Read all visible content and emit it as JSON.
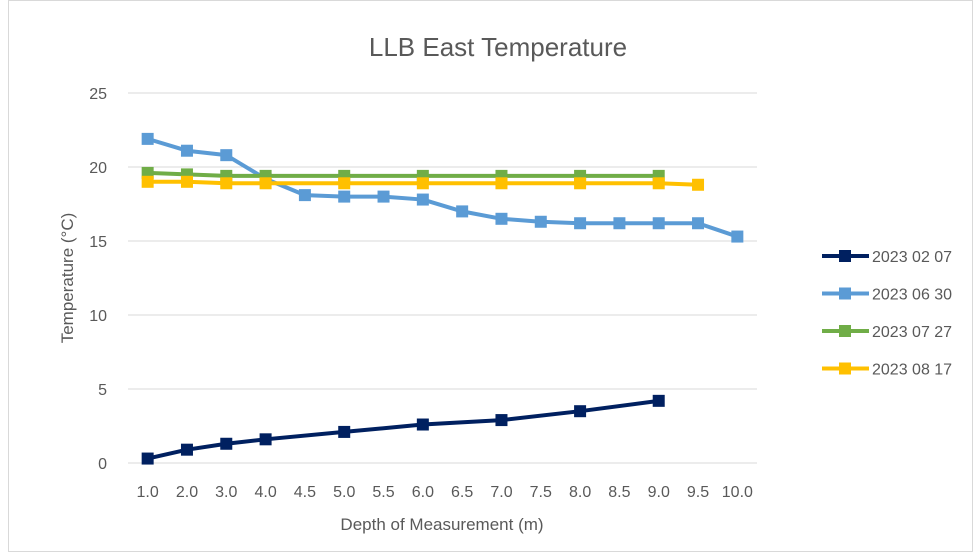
{
  "chart_data": {
    "type": "line",
    "title": "LLB East Temperature",
    "xlabel": "Depth of Measurement (m)",
    "ylabel": "Temperature (°C)",
    "categories": [
      "1.0",
      "2.0",
      "3.0",
      "4.0",
      "4.5",
      "5.0",
      "5.5",
      "6.0",
      "6.5",
      "7.0",
      "7.5",
      "8.0",
      "8.5",
      "9.0",
      "9.5",
      "10.0"
    ],
    "yticks": [
      "0",
      "5",
      "10",
      "15",
      "20",
      "25"
    ],
    "ylim": [
      0,
      25
    ],
    "grid": true,
    "legend_position": "right",
    "series": [
      {
        "name": "2023 02 07",
        "color": "#002060",
        "values": [
          0.3,
          0.9,
          1.3,
          1.6,
          null,
          2.1,
          null,
          2.6,
          null,
          2.9,
          null,
          3.5,
          null,
          4.2,
          null,
          null
        ]
      },
      {
        "name": "2023 06 30",
        "color": "#5B9BD5",
        "values": [
          21.9,
          21.1,
          20.8,
          19.2,
          18.1,
          18.0,
          18.0,
          17.8,
          17.0,
          16.5,
          16.3,
          16.2,
          16.2,
          16.2,
          16.2,
          15.3
        ]
      },
      {
        "name": "2023 07 27",
        "color": "#70AD47",
        "values": [
          19.6,
          19.5,
          19.4,
          19.4,
          null,
          19.4,
          null,
          19.4,
          null,
          19.4,
          null,
          19.4,
          null,
          19.4,
          null,
          null
        ]
      },
      {
        "name": "2023 08 17",
        "color": "#FFC000",
        "values": [
          19.0,
          19.0,
          18.9,
          18.9,
          null,
          18.9,
          null,
          18.9,
          null,
          18.9,
          null,
          18.9,
          null,
          18.9,
          18.8,
          null
        ]
      }
    ]
  }
}
